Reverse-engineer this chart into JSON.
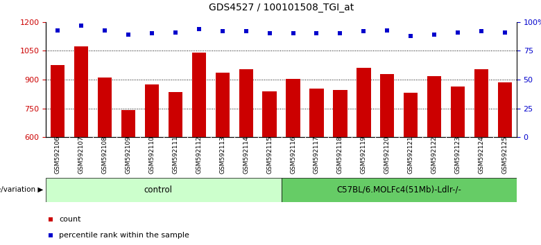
{
  "title": "GDS4527 / 100101508_TGI_at",
  "samples": [
    "GSM592106",
    "GSM592107",
    "GSM592108",
    "GSM592109",
    "GSM592110",
    "GSM592111",
    "GSM592112",
    "GSM592113",
    "GSM592114",
    "GSM592115",
    "GSM592116",
    "GSM592117",
    "GSM592118",
    "GSM592119",
    "GSM592120",
    "GSM592121",
    "GSM592122",
    "GSM592123",
    "GSM592124",
    "GSM592125"
  ],
  "bar_values": [
    975,
    1075,
    910,
    740,
    875,
    835,
    1040,
    935,
    955,
    840,
    905,
    855,
    845,
    960,
    930,
    830,
    920,
    865,
    955,
    885
  ],
  "percentile_values": [
    93,
    97,
    93,
    89,
    90,
    91,
    94,
    92,
    92,
    90,
    90,
    90,
    90,
    92,
    93,
    88,
    89,
    91,
    92,
    91
  ],
  "bar_color": "#cc0000",
  "dot_color": "#0000cc",
  "ylim_left": [
    600,
    1200
  ],
  "ylim_right": [
    0,
    100
  ],
  "yticks_left": [
    600,
    750,
    900,
    1050,
    1200
  ],
  "yticks_right": [
    0,
    25,
    50,
    75,
    100
  ],
  "grid_values": [
    750,
    900,
    1050
  ],
  "control_count": 10,
  "genotype_label": "genotype/variation",
  "group1_label": "control",
  "group2_label": "C57BL/6.MOLFc4(51Mb)-Ldlr-/-",
  "group1_color": "#ccffcc",
  "group2_color": "#66cc66",
  "legend_count_label": "count",
  "legend_pct_label": "percentile rank within the sample",
  "bar_width": 0.6,
  "tick_label_color_left": "#cc0000",
  "tick_label_color_right": "#0000cc",
  "xtick_bg_color": "#d8d8d8",
  "title_fontsize": 10,
  "axis_fontsize": 8,
  "xtick_fontsize": 6.5
}
